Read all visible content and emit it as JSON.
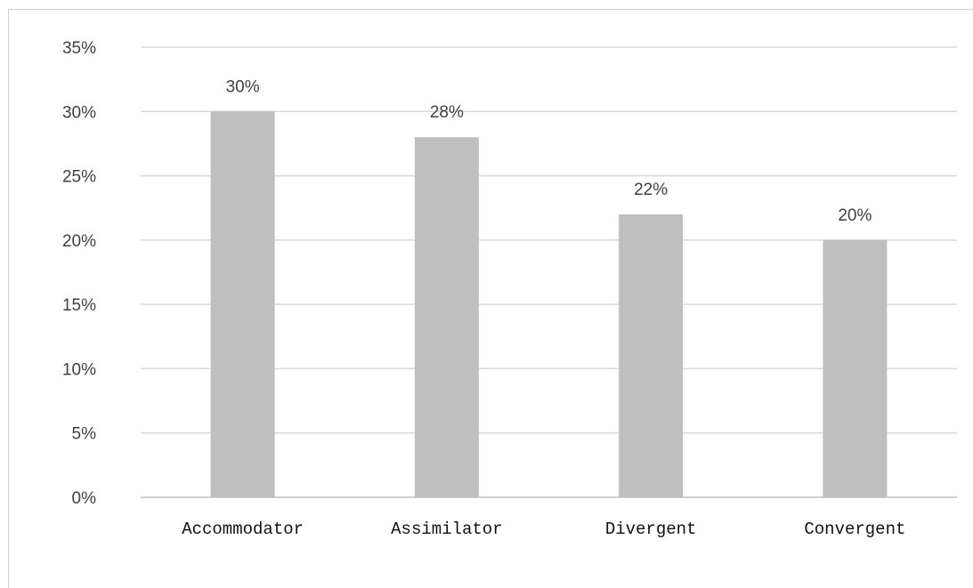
{
  "chart_data": {
    "type": "bar",
    "categories": [
      "Accommodator",
      "Assimilator",
      "Divergent",
      "Convergent"
    ],
    "values": [
      30,
      28,
      22,
      20
    ],
    "value_labels": [
      "30%",
      "28%",
      "22%",
      "20%"
    ],
    "ylim": [
      0,
      35
    ],
    "yticks": [
      0,
      5,
      10,
      15,
      20,
      25,
      30,
      35
    ],
    "ytick_labels": [
      "0%",
      "5%",
      "10%",
      "15%",
      "20%",
      "25%",
      "30%",
      "35%"
    ],
    "grid": true,
    "legend": "none",
    "colors": {
      "bar": "#bfbfbf",
      "grid": "#d9d9d9",
      "axis": "#bfbfbf"
    }
  }
}
